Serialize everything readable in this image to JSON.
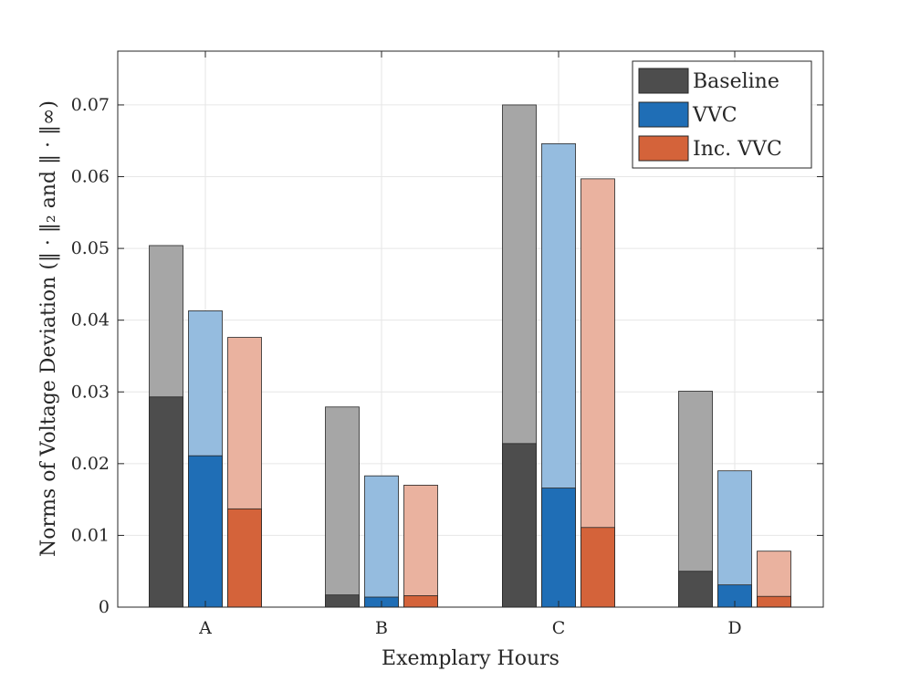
{
  "chart_data": {
    "type": "bar",
    "title": "",
    "xlabel": "Exemplary Hours",
    "ylabel": "Norms of Voltage Deviation (‖ · ‖₂ and ‖ · ‖∞)",
    "categories": [
      "A",
      "B",
      "C",
      "D"
    ],
    "ylim": [
      0,
      0.0775
    ],
    "yticks": [
      0,
      0.01,
      0.02,
      0.03,
      0.04,
      0.05,
      0.06,
      0.07
    ],
    "ytick_labels": [
      "0",
      "0.01",
      "0.02",
      "0.03",
      "0.04",
      "0.05",
      "0.06",
      "0.07"
    ],
    "grid": true,
    "legend_position": "top-right",
    "series": [
      {
        "name": "Baseline",
        "color": "#4d4d4d",
        "light_color": "#a6a6a6",
        "values_tall": [
          0.0504,
          0.0279,
          0.07,
          0.0301
        ],
        "values_short": [
          0.0293,
          0.0017,
          0.0228,
          0.005
        ]
      },
      {
        "name": "VVC",
        "color": "#1f6eb6",
        "light_color": "#95bcdf",
        "values_tall": [
          0.0413,
          0.0183,
          0.0646,
          0.019
        ],
        "values_short": [
          0.0211,
          0.0014,
          0.0166,
          0.0031
        ]
      },
      {
        "name": "Inc. VVC",
        "color": "#d4633a",
        "light_color": "#eab29f",
        "values_tall": [
          0.0376,
          0.017,
          0.0597,
          0.0078
        ],
        "values_short": [
          0.0137,
          0.0016,
          0.0111,
          0.0015
        ]
      }
    ]
  }
}
